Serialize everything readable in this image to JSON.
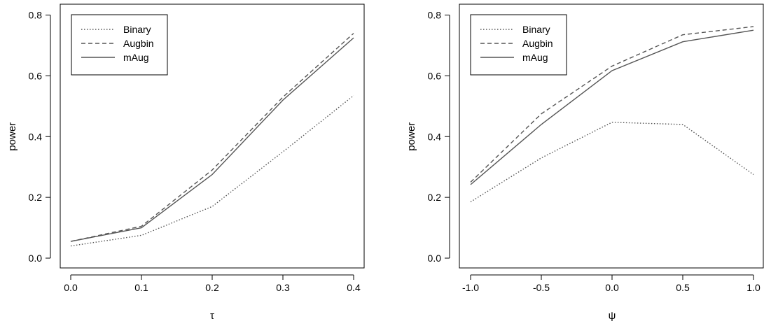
{
  "chart_data": [
    {
      "type": "line",
      "title": "",
      "xlabel": "τ",
      "ylabel": "power",
      "xlim": [
        0.0,
        0.4
      ],
      "ylim": [
        0.0,
        0.8
      ],
      "x": [
        0.0,
        0.1,
        0.2,
        0.3,
        0.4
      ],
      "xticks": [
        "0.0",
        "0.1",
        "0.2",
        "0.3",
        "0.4"
      ],
      "yticks": [
        "0.0",
        "0.2",
        "0.4",
        "0.6",
        "0.8"
      ],
      "grid": false,
      "legend_position": "top-left",
      "series": [
        {
          "name": "Binary",
          "style": "dotted",
          "values": [
            0.04,
            0.075,
            0.17,
            0.35,
            0.535
          ]
        },
        {
          "name": "Augbin",
          "style": "dashed",
          "values": [
            0.055,
            0.105,
            0.29,
            0.53,
            0.74
          ]
        },
        {
          "name": "mAug",
          "style": "solid",
          "values": [
            0.055,
            0.1,
            0.275,
            0.52,
            0.725
          ]
        }
      ]
    },
    {
      "type": "line",
      "title": "",
      "xlabel": "ψ",
      "ylabel": "power",
      "xlim": [
        -1.0,
        1.0
      ],
      "ylim": [
        0.0,
        0.8
      ],
      "x": [
        -1.0,
        -0.5,
        0.0,
        0.5,
        1.0
      ],
      "xticks": [
        "-1.0",
        "-0.5",
        "0.0",
        "0.5",
        "1.0"
      ],
      "yticks": [
        "0.0",
        "0.2",
        "0.4",
        "0.6",
        "0.8"
      ],
      "grid": false,
      "legend_position": "top-left",
      "series": [
        {
          "name": "Binary",
          "style": "dotted",
          "values": [
            0.185,
            0.33,
            0.447,
            0.44,
            0.275
          ]
        },
        {
          "name": "Augbin",
          "style": "dashed",
          "values": [
            0.25,
            0.475,
            0.632,
            0.735,
            0.762
          ]
        },
        {
          "name": "mAug",
          "style": "solid",
          "values": [
            0.242,
            0.44,
            0.617,
            0.712,
            0.75
          ]
        }
      ]
    }
  ],
  "colors": {
    "line": "#555555",
    "axis": "#000000"
  }
}
